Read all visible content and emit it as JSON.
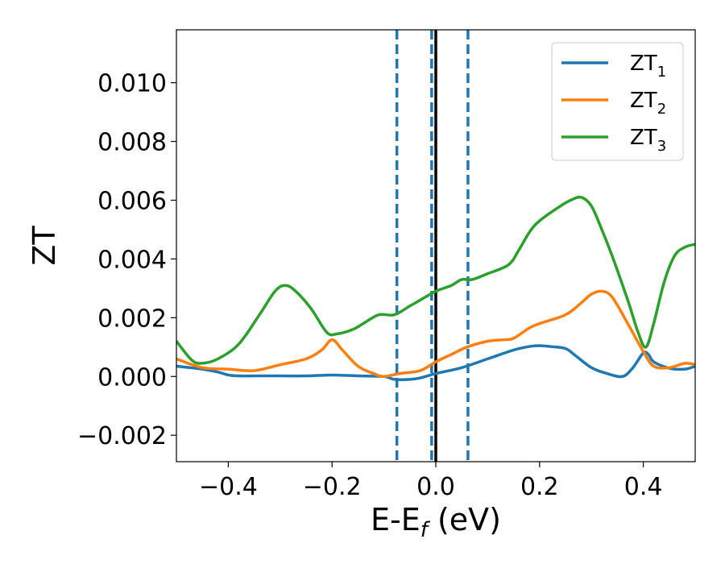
{
  "chart_data": {
    "type": "line",
    "xlabel": "E-E",
    "xlabel_sub": "f",
    "xlabel_unit": " (eV)",
    "ylabel": "ZT",
    "xlim": [
      -0.5,
      0.5
    ],
    "ylim": [
      -0.0029,
      0.0118
    ],
    "xticks": [
      -0.4,
      -0.2,
      0.0,
      0.2,
      0.4
    ],
    "xtick_labels": [
      "−0.4",
      "−0.2",
      "0.0",
      "0.2",
      "0.4"
    ],
    "yticks": [
      -0.002,
      0.0,
      0.002,
      0.004,
      0.006,
      0.008,
      0.01
    ],
    "ytick_labels": [
      "−0.002",
      "0.000",
      "0.002",
      "0.004",
      "0.006",
      "0.008",
      "0.010"
    ],
    "legend": {
      "position": "top-right"
    },
    "reference_lines": [
      {
        "x": 0.0,
        "color": "#000000",
        "style": "solid"
      },
      {
        "x": -0.075,
        "color": "#1f77b4",
        "style": "dashed"
      },
      {
        "x": -0.008,
        "color": "#1f77b4",
        "style": "dashed"
      },
      {
        "x": 0.062,
        "color": "#1f77b4",
        "style": "dashed"
      }
    ],
    "series": [
      {
        "name": "ZT",
        "sub": "1",
        "color": "#1f77b4",
        "x": [
          -0.5,
          -0.45,
          -0.42,
          -0.4,
          -0.38,
          -0.35,
          -0.3,
          -0.25,
          -0.2,
          -0.15,
          -0.1,
          -0.08,
          -0.05,
          -0.03,
          0.0,
          0.05,
          0.1,
          0.15,
          0.18,
          0.2,
          0.22,
          0.25,
          0.27,
          0.3,
          0.33,
          0.36,
          0.38,
          0.4,
          0.41,
          0.42,
          0.45,
          0.48,
          0.5
        ],
        "y": [
          0.00035,
          0.00025,
          0.00015,
          5e-05,
          2e-05,
          2e-05,
          2e-05,
          2e-05,
          5e-05,
          2e-05,
          0.0,
          -0.0001,
          -0.0001,
          -5e-05,
          0.0001,
          0.0003,
          0.0006,
          0.0009,
          0.00102,
          0.00105,
          0.00102,
          0.00095,
          0.0007,
          0.0003,
          0.0001,
          0.0,
          0.0003,
          0.0008,
          0.00075,
          0.0005,
          0.00028,
          0.00025,
          0.00035
        ]
      },
      {
        "name": "ZT",
        "sub": "2",
        "color": "#ff7f0e",
        "x": [
          -0.5,
          -0.45,
          -0.4,
          -0.35,
          -0.3,
          -0.25,
          -0.22,
          -0.2,
          -0.18,
          -0.15,
          -0.12,
          -0.1,
          -0.07,
          -0.03,
          0.0,
          0.03,
          0.06,
          0.1,
          0.13,
          0.15,
          0.18,
          0.2,
          0.25,
          0.28,
          0.3,
          0.32,
          0.34,
          0.37,
          0.4,
          0.42,
          0.45,
          0.48,
          0.5
        ],
        "y": [
          0.0006,
          0.0003,
          0.00025,
          0.0002,
          0.0004,
          0.0006,
          0.0009,
          0.00125,
          0.0009,
          0.00035,
          0.0001,
          0.0,
          0.0001,
          0.0002,
          0.0005,
          0.00075,
          0.001,
          0.0012,
          0.00125,
          0.0013,
          0.00165,
          0.0018,
          0.0021,
          0.0025,
          0.0028,
          0.0029,
          0.0027,
          0.0018,
          0.00085,
          0.00035,
          0.0003,
          0.00045,
          0.0004
        ]
      },
      {
        "name": "ZT",
        "sub": "3",
        "color": "#2ca02c",
        "x": [
          -0.5,
          -0.47,
          -0.45,
          -0.42,
          -0.38,
          -0.34,
          -0.31,
          -0.29,
          -0.27,
          -0.24,
          -0.21,
          -0.19,
          -0.16,
          -0.14,
          -0.11,
          -0.08,
          -0.05,
          -0.03,
          0.0,
          0.03,
          0.05,
          0.07,
          0.1,
          0.14,
          0.16,
          0.18,
          0.2,
          0.24,
          0.26,
          0.28,
          0.3,
          0.32,
          0.34,
          0.37,
          0.39,
          0.405,
          0.42,
          0.44,
          0.46,
          0.48,
          0.5
        ],
        "y": [
          0.0012,
          0.00055,
          0.00045,
          0.0006,
          0.0011,
          0.0021,
          0.0029,
          0.0031,
          0.0029,
          0.0023,
          0.0015,
          0.00145,
          0.0016,
          0.0018,
          0.0021,
          0.0021,
          0.0024,
          0.0026,
          0.0029,
          0.0031,
          0.0033,
          0.0033,
          0.0035,
          0.0038,
          0.0043,
          0.0049,
          0.0053,
          0.0058,
          0.006,
          0.0061,
          0.0058,
          0.005,
          0.0041,
          0.0026,
          0.0015,
          0.001,
          0.0018,
          0.0032,
          0.0041,
          0.0044,
          0.0045
        ]
      }
    ]
  }
}
